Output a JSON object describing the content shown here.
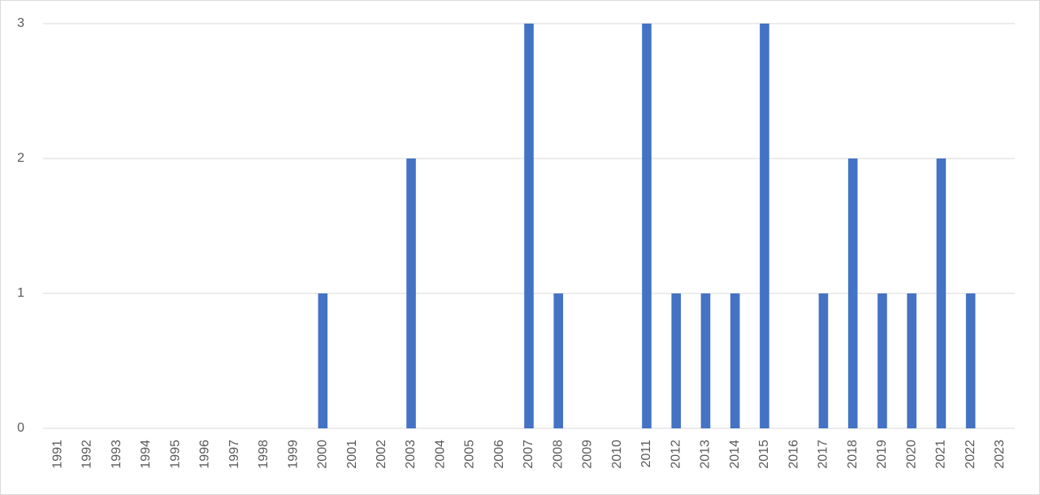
{
  "chart_data": {
    "type": "bar",
    "categories": [
      "1991",
      "1992",
      "1993",
      "1994",
      "1995",
      "1996",
      "1997",
      "1998",
      "1999",
      "2000",
      "2001",
      "2002",
      "2003",
      "2004",
      "2005",
      "2006",
      "2007",
      "2008",
      "2009",
      "2010",
      "2011",
      "2012",
      "2013",
      "2014",
      "2015",
      "2016",
      "2017",
      "2018",
      "2019",
      "2020",
      "2021",
      "2022",
      "2023"
    ],
    "values": [
      0,
      0,
      0,
      0,
      0,
      0,
      0,
      0,
      0,
      1,
      0,
      0,
      2,
      0,
      0,
      0,
      3,
      1,
      0,
      0,
      3,
      1,
      1,
      1,
      3,
      0,
      1,
      2,
      1,
      1,
      2,
      1,
      0
    ],
    "color": "#4472c4",
    "ylim": [
      0,
      3
    ],
    "yticks": [
      0,
      1,
      2,
      3
    ],
    "grid": true
  }
}
